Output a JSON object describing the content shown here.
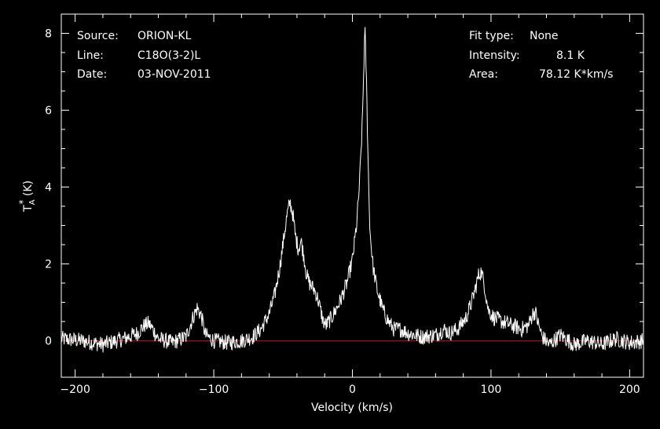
{
  "chart_data": {
    "type": "line",
    "title": "",
    "xlabel": "Velocity (km/s)",
    "ylabel": "T",
    "ylabel_sup": "*",
    "ylabel_sub": "A",
    "ylabel_unit": "(K)",
    "xlim": [
      -210,
      210
    ],
    "ylim": [
      -0.95,
      8.5
    ],
    "xticks": [
      -200,
      -100,
      0,
      100,
      200
    ],
    "yticks": [
      0,
      2,
      4,
      6,
      8
    ],
    "xtick_labels": [
      "−200",
      "−100",
      "0",
      "100",
      "200"
    ],
    "ytick_labels": [
      "0",
      "2",
      "4",
      "6",
      "8"
    ],
    "grid": false,
    "colors": {
      "background": "#000000",
      "axes": "#ffffff",
      "spectrum": "#ffffff",
      "baseline": "#cc0000"
    },
    "baseline_value": 0,
    "info_left": [
      {
        "key": "Source:",
        "value": "ORION-KL"
      },
      {
        "key": "Line:",
        "value": "C18O(3-2)L"
      },
      {
        "key": "Date:",
        "value": "03-NOV-2011"
      }
    ],
    "info_right": [
      {
        "key": "Fit type:",
        "value": "None"
      },
      {
        "key": "Intensity:",
        "value": "8.1 K"
      },
      {
        "key": "Area:",
        "value": "78.12 K*km/s"
      }
    ],
    "series": [
      {
        "x": [
          -210,
          -195,
          -180,
          -165,
          -155,
          -150,
          -147,
          -144,
          -140,
          -130,
          -120,
          -115,
          -112,
          -109,
          -106,
          -100,
          -90,
          -80,
          -72,
          -66,
          -60,
          -56,
          -52,
          -49,
          -47,
          -45,
          -43,
          -41,
          -39,
          -37,
          -35,
          -33,
          -31,
          -29,
          -27,
          -25,
          -23,
          -21,
          -19,
          -17,
          -15,
          -12,
          -8,
          -4,
          0,
          3,
          5,
          7,
          8,
          9,
          10,
          11,
          12,
          13,
          15,
          18,
          22,
          26,
          30,
          35,
          40,
          50,
          60,
          66,
          70,
          76,
          82,
          86,
          89,
          91,
          93,
          95,
          98,
          102,
          108,
          115,
          122,
          127,
          130,
          132,
          134,
          137,
          142,
          150,
          160,
          170,
          180,
          190,
          200,
          210
        ],
        "y": [
          0.05,
          0.0,
          -0.1,
          0.05,
          0.2,
          0.4,
          0.45,
          0.3,
          0.05,
          -0.05,
          0.1,
          0.6,
          0.85,
          0.65,
          0.15,
          0.0,
          -0.05,
          0.0,
          0.1,
          0.3,
          0.7,
          1.2,
          2.0,
          2.8,
          3.3,
          3.6,
          3.3,
          2.7,
          2.4,
          2.6,
          2.2,
          1.7,
          1.5,
          1.4,
          1.3,
          1.1,
          0.8,
          0.5,
          0.4,
          0.5,
          0.6,
          0.8,
          1.1,
          1.5,
          2.1,
          3.0,
          4.0,
          5.5,
          6.8,
          8.1,
          7.0,
          5.3,
          3.6,
          2.7,
          1.9,
          1.3,
          0.8,
          0.5,
          0.3,
          0.3,
          0.2,
          0.1,
          0.15,
          0.3,
          0.2,
          0.3,
          0.6,
          1.0,
          1.4,
          1.7,
          1.8,
          1.5,
          0.8,
          0.6,
          0.5,
          0.4,
          0.3,
          0.4,
          0.7,
          0.75,
          0.45,
          0.1,
          -0.1,
          0.15,
          -0.1,
          0.0,
          -0.1,
          0.05,
          -0.05,
          0.0
        ]
      }
    ]
  }
}
